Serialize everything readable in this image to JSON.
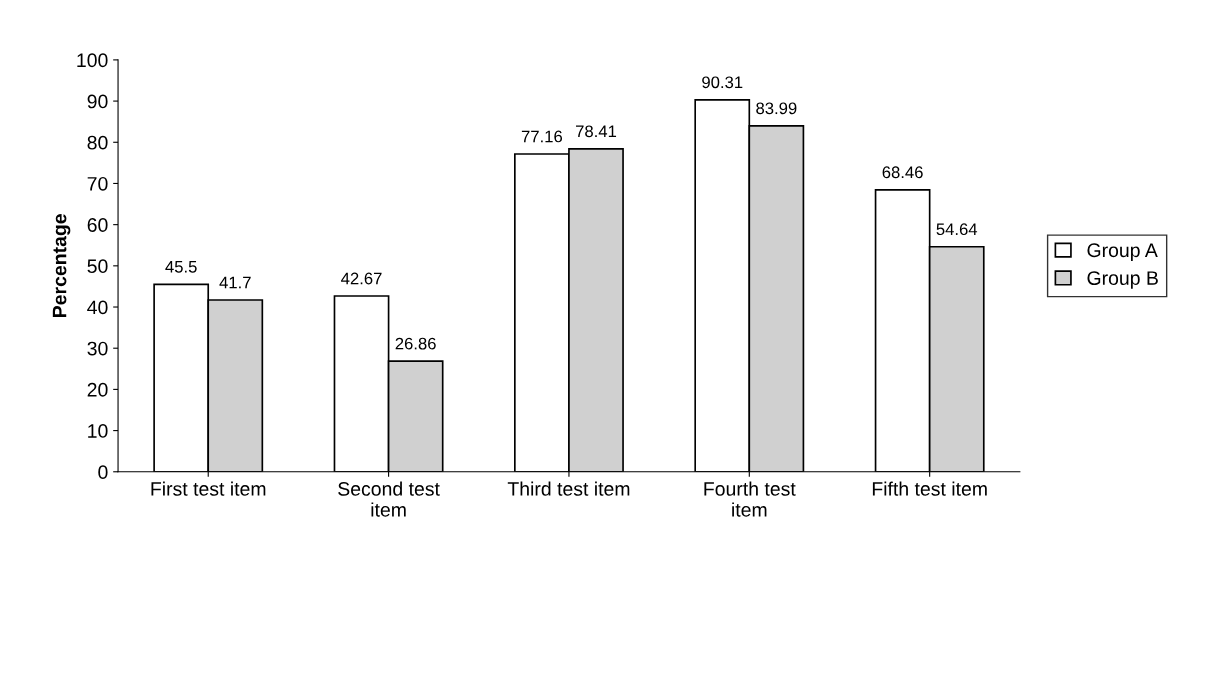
{
  "chart_data": {
    "type": "bar",
    "ylabel": "Percentage",
    "categories": [
      "First test item",
      "Second test\nitem",
      "Third test item",
      "Fourth test\nitem",
      "Fifth test item"
    ],
    "series": [
      {
        "name": "Group A",
        "color": "#ffffff",
        "values": [
          45.5,
          42.67,
          77.16,
          90.31,
          68.46
        ]
      },
      {
        "name": "Group B",
        "color": "#d0d0d0",
        "values": [
          41.7,
          26.86,
          78.41,
          83.99,
          54.64
        ]
      }
    ],
    "ylim": [
      0,
      100
    ],
    "yticks": [
      0,
      10,
      20,
      30,
      40,
      50,
      60,
      70,
      80,
      90,
      100
    ],
    "data_labels": true,
    "legend": "right",
    "grid": false
  }
}
